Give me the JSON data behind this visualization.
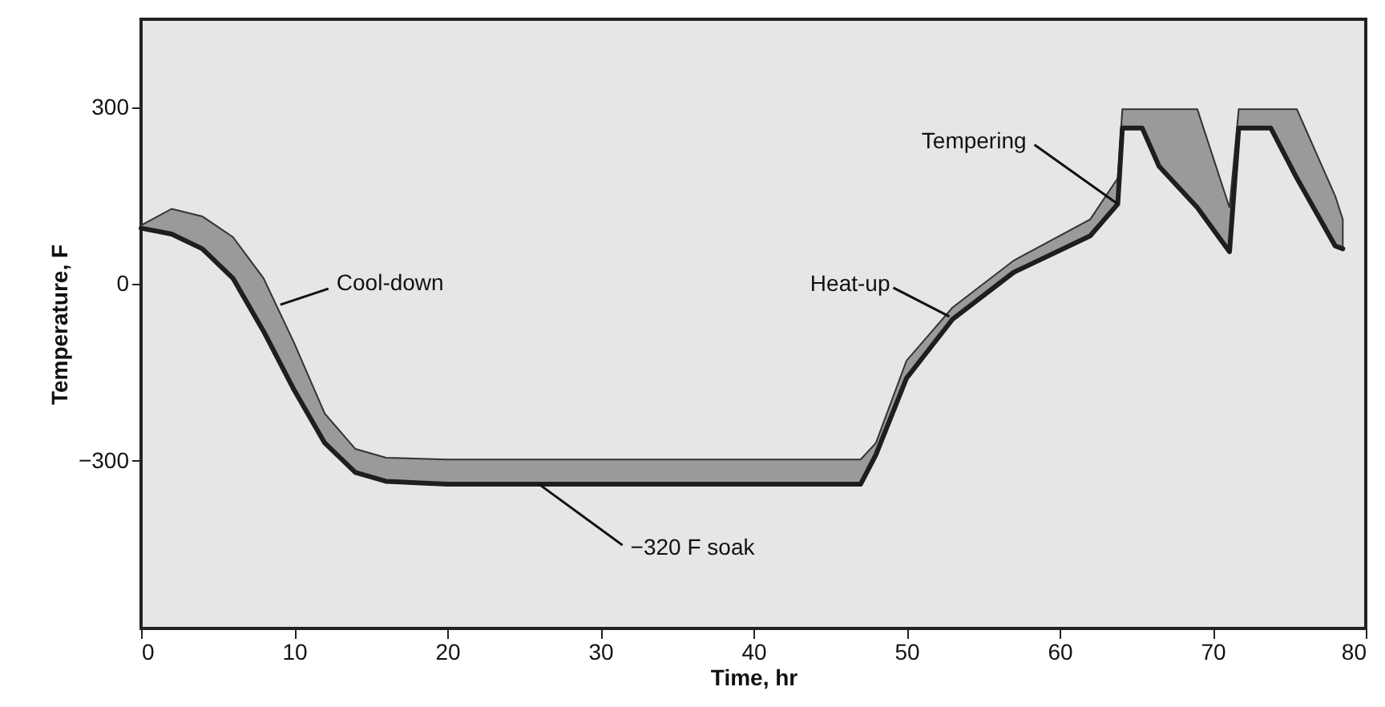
{
  "chart_data": {
    "type": "line",
    "xlabel": "Time, hr",
    "ylabel": "Temperature, F",
    "x": [
      0,
      2,
      4,
      6,
      8,
      10,
      12,
      14,
      16,
      20,
      47,
      48,
      50,
      53,
      57,
      62,
      63.8,
      64.1,
      65.4,
      66.5,
      69,
      71.1,
      71.7,
      73.8,
      75.5,
      78,
      78.5
    ],
    "series": [
      {
        "color": "#1e1e1e",
        "values": [
          95,
          85,
          60,
          10,
          -80,
          -180,
          -270,
          -320,
          -335,
          -340,
          -340,
          -290,
          -160,
          -60,
          20,
          82,
          136,
          265,
          265,
          200,
          130,
          55,
          265,
          265,
          180,
          65,
          60
        ],
        "upper": [
          100,
          128,
          115,
          80,
          10,
          -100,
          -220,
          -280,
          -295,
          -298,
          -298,
          -270,
          -130,
          -40,
          40,
          110,
          180,
          297,
          297,
          297,
          297,
          130,
          297,
          297,
          297,
          150,
          110
        ],
        "lower": [
          95,
          85,
          60,
          10,
          -80,
          -180,
          -270,
          -320,
          -335,
          -340,
          -340,
          -290,
          -160,
          -60,
          20,
          82,
          136,
          265,
          265,
          200,
          130,
          55,
          265,
          265,
          180,
          65,
          60
        ]
      }
    ],
    "xlim": [
      0,
      80
    ],
    "xticks": [
      0,
      10,
      20,
      30,
      40,
      50,
      60,
      70,
      80
    ],
    "ylim": [
      -585,
      450
    ],
    "yticks": [
      -300,
      0,
      300
    ],
    "annotations": [
      {
        "text": "Cool-down",
        "x": 9.1,
        "y": -35
      },
      {
        "text": "−320 F soak",
        "x": 26,
        "y": -340
      },
      {
        "text": "Heat-up",
        "x": 52.8,
        "y": -55
      },
      {
        "text": "Tempering",
        "x": 63.8,
        "y": 136
      }
    ]
  }
}
